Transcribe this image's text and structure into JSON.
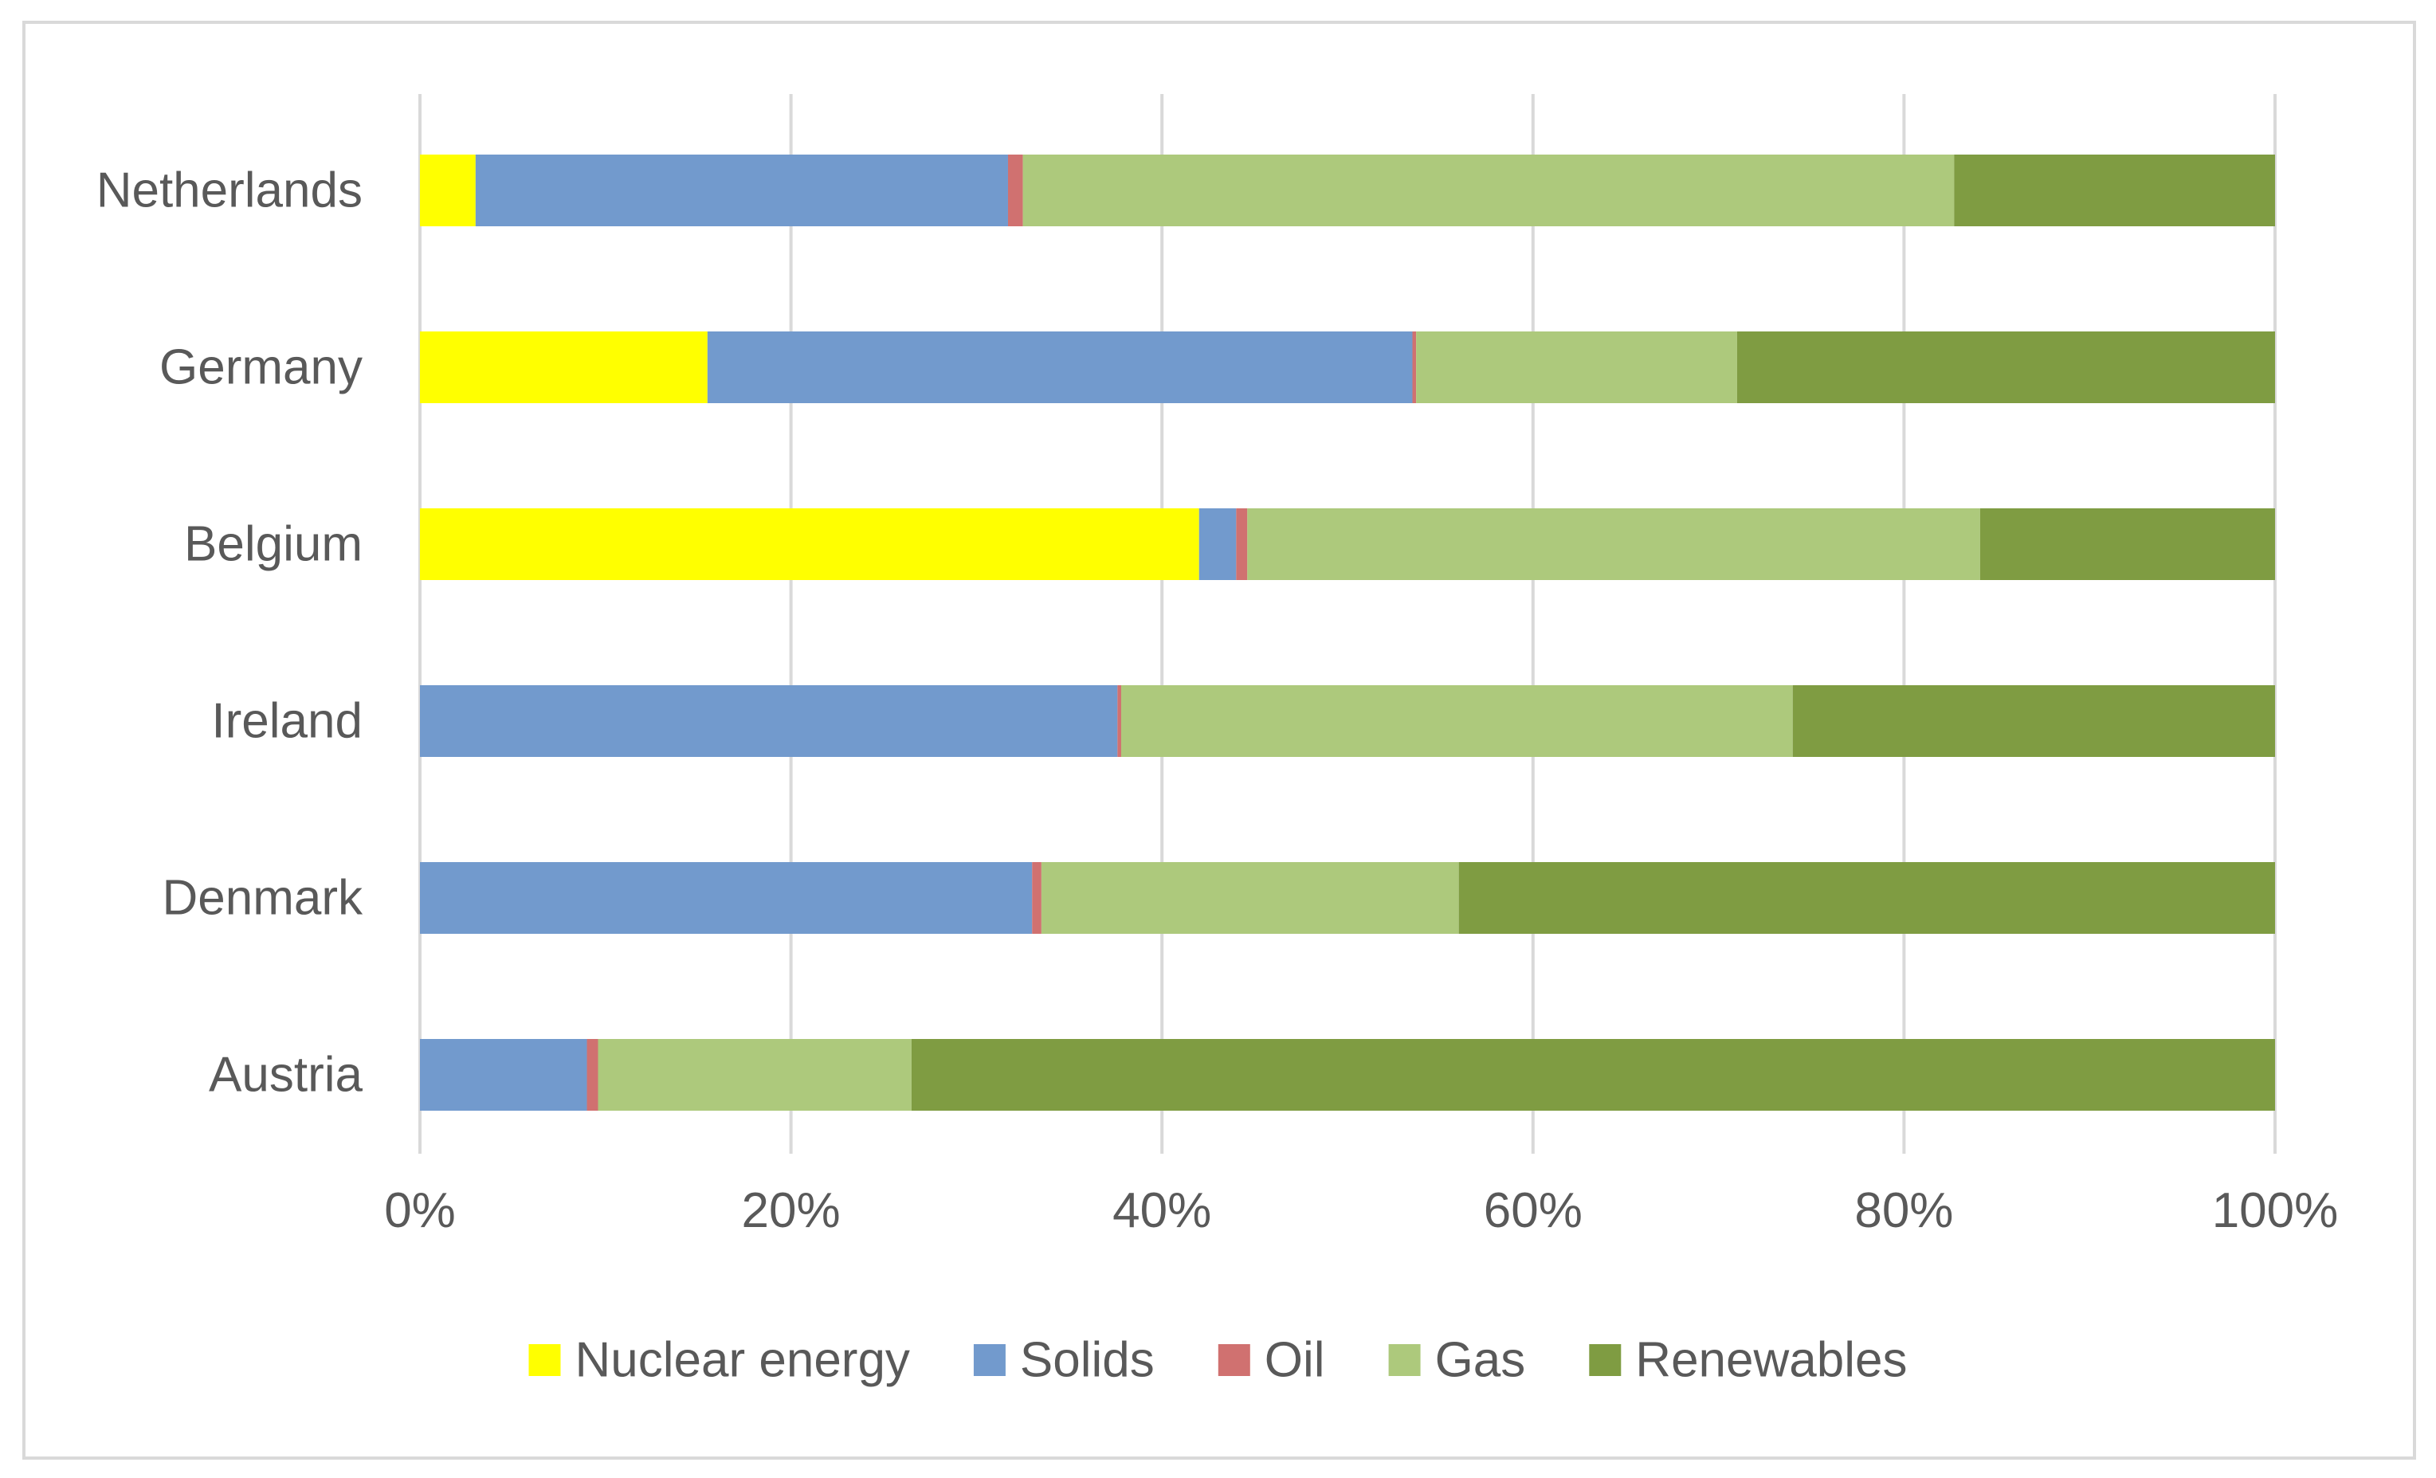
{
  "chart_data": {
    "type": "bar",
    "orientation": "horizontal",
    "stacked": "percent",
    "title": "",
    "xlabel": "",
    "ylabel": "",
    "xlim": [
      0,
      100
    ],
    "x_ticks": [
      "0%",
      "20%",
      "40%",
      "60%",
      "80%",
      "100%"
    ],
    "grid": "vertical",
    "legend_position": "bottom",
    "categories": [
      "Netherlands",
      "Germany",
      "Belgium",
      "Ireland",
      "Denmark",
      "Austria"
    ],
    "series": [
      {
        "name": "Nuclear energy",
        "color": "#ffff00",
        "values": [
          3,
          15.5,
          42,
          0,
          0,
          0
        ]
      },
      {
        "name": "Solids",
        "color": "#729acd",
        "values": [
          28.7,
          38,
          2,
          37.6,
          33,
          9
        ]
      },
      {
        "name": "Oil",
        "color": "#d07170",
        "values": [
          0.8,
          0.2,
          0.6,
          0.2,
          0.5,
          0.6
        ]
      },
      {
        "name": "Gas",
        "color": "#adc97c",
        "values": [
          50.2,
          17.3,
          39.5,
          36.2,
          22.5,
          16.9
        ]
      },
      {
        "name": "Renewables",
        "color": "#7f9c42",
        "values": [
          17.3,
          29,
          15.9,
          26,
          44,
          73.5
        ]
      }
    ]
  }
}
